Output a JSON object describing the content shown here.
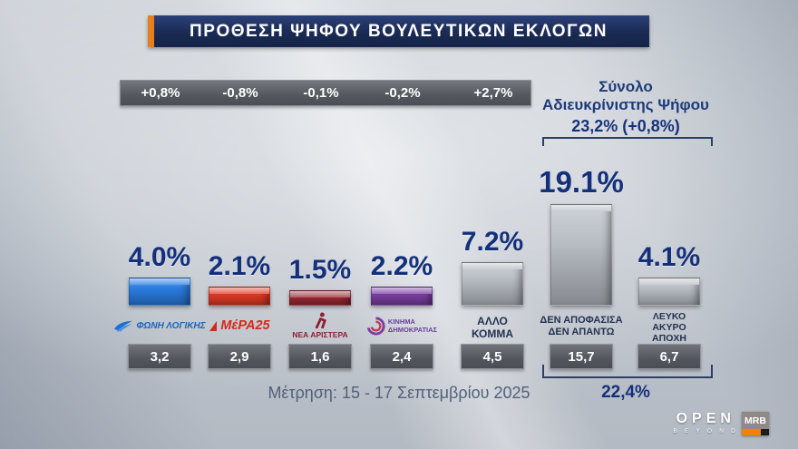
{
  "header": {
    "title": "ΠΡΟΘΕΣΗ ΨΗΦΟΥ ΒΟΥΛΕΥΤΙΚΩΝ ΕΚΛΟΓΩΝ"
  },
  "undecided": {
    "line1": "Σύνολο",
    "line2": "Αδιευκρίνιστης  Ψήφου",
    "total": "23,2% (+0,8%)",
    "bottom_total": "22,4%"
  },
  "columns": [
    {
      "pct": "4.0%",
      "change": "+0,8%",
      "prev": "3,2",
      "name": "ΦΩΝΗ ΛΟΓΙΚΗΣ",
      "color": "#2a7de1"
    },
    {
      "pct": "2.1%",
      "change": "-0,8%",
      "prev": "2,9",
      "name": "ΜέΡΑ25",
      "color": "#e03a26"
    },
    {
      "pct": "1.5%",
      "change": "-0,1%",
      "prev": "1,6",
      "name": "ΝΕΑ ΑΡΙΣΤΕΡΑ",
      "color": "#9a2733"
    },
    {
      "pct": "2.2%",
      "change": "-0,2%",
      "prev": "2,4",
      "name": "ΚΙΝΗΜΑ ΔΗΜΟΚΡΑΤΙΑΣ",
      "name_lines": [
        "ΚΙΝΗΜΑ",
        "ΔΗΜΟΚΡΑΤΙΑΣ"
      ],
      "color": "#7b3fa3"
    },
    {
      "pct": "7.2%",
      "change": "+2,7%",
      "prev": "4,5",
      "label_lines": [
        "ΑΛΛΟ",
        "ΚΟΜΜΑ"
      ],
      "color": "#b9bfc6"
    },
    {
      "pct": "19.1%",
      "prev": "15,7",
      "label_lines": [
        "ΔΕΝ ΑΠΟΦΑΣΙΣΑ",
        "ΔΕΝ ΑΠΑΝΤΩ"
      ],
      "color": "#b9bfc6"
    },
    {
      "pct": "4.1%",
      "prev": "6,7",
      "label_lines": [
        "ΛΕΥΚΟ",
        "ΑΚΥΡΟ",
        "ΑΠΟΧΗ"
      ],
      "color": "#b9bfc6"
    }
  ],
  "footer": {
    "measurement": "Μέτρηση: 15 - 17 Σεπτεμβρίου 2025"
  },
  "branding": {
    "open": "OPEN",
    "beyond": "B E Y O N D",
    "mrb": "MRB"
  },
  "chart_data": {
    "type": "bar",
    "title": "ΠΡΟΘΕΣΗ ΨΗΦΟΥ ΒΟΥΛΕΥΤΙΚΩΝ ΕΚΛΟΓΩΝ",
    "categories": [
      "ΦΩΝΗ ΛΟΓΙΚΗΣ",
      "ΜέΡΑ25",
      "ΝΕΑ ΑΡΙΣΤΕΡΑ",
      "ΚΙΝΗΜΑ ΔΗΜΟΚΡΑΤΙΑΣ",
      "ΑΛΛΟ ΚΟΜΜΑ",
      "ΔΕΝ ΑΠΟΦΑΣΙΣΑ ΔΕΝ ΑΠΑΝΤΩ",
      "ΛΕΥΚΟ ΑΚΥΡΟ ΑΠΟΧΗ"
    ],
    "series": [
      {
        "name": "current",
        "values": [
          4.0,
          2.1,
          1.5,
          2.2,
          7.2,
          19.1,
          4.1
        ]
      },
      {
        "name": "previous",
        "values": [
          3.2,
          2.9,
          1.6,
          2.4,
          4.5,
          15.7,
          6.7
        ]
      }
    ],
    "changes": [
      "+0,8%",
      "-0,8%",
      "-0,1%",
      "-0,2%",
      "+2,7%",
      null,
      null
    ],
    "annotations": {
      "undecided_total": "23,2% (+0,8%)",
      "undecided_previous_total": "22,4%",
      "measurement_period": "Μέτρηση: 15 - 17 Σεπτεμβρίου 2025"
    },
    "bar_colors": [
      "#2a7de1",
      "#e03a26",
      "#9a2733",
      "#7b3fa3",
      "#b9bfc6",
      "#b9bfc6",
      "#b9bfc6"
    ],
    "ylim": [
      0,
      20
    ],
    "grid": false,
    "legend_position": "none"
  }
}
